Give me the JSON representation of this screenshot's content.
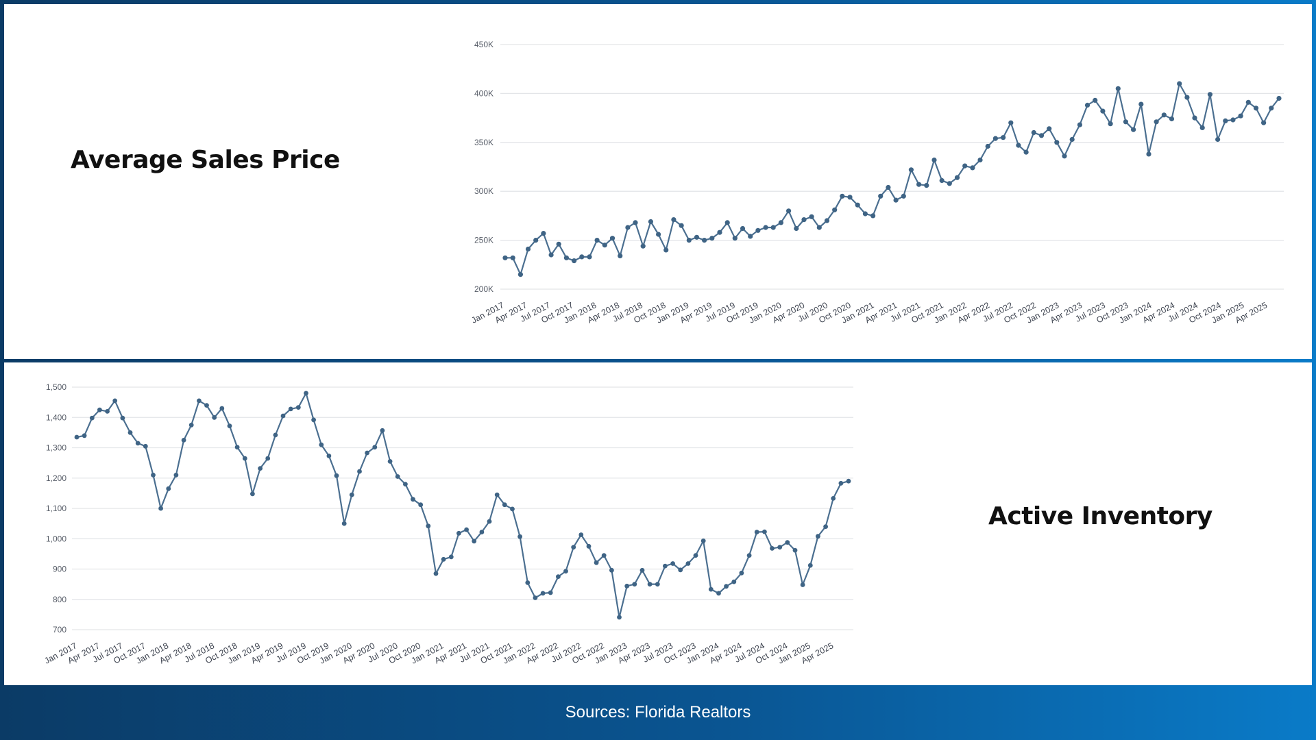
{
  "slide": {
    "source": "Sources: Florida Realtors"
  },
  "chart_data": [
    {
      "type": "line",
      "title": "Average Sales Price",
      "xlabel": "",
      "ylabel": "",
      "ylim": [
        200000,
        450000
      ],
      "yticks": [
        200000,
        250000,
        300000,
        350000,
        400000,
        450000
      ],
      "ytick_labels": [
        "200K",
        "250K",
        "300K",
        "350K",
        "400K",
        "450K"
      ],
      "grid": true,
      "colors": {
        "line": "#4b6f90",
        "marker": "#3f6485"
      },
      "xtick_labels": [
        "Jan 2017",
        "Apr 2017",
        "Jul 2017",
        "Oct 2017",
        "Jan 2018",
        "Apr 2018",
        "Jul 2018",
        "Oct 2018",
        "Jan 2019",
        "Apr 2019",
        "Jul 2019",
        "Oct 2019",
        "Jan 2020",
        "Apr 2020",
        "Jul 2020",
        "Oct 2020",
        "Jan 2021",
        "Apr 2021",
        "Jul 2021",
        "Oct 2021",
        "Jan 2022",
        "Apr 2022",
        "Jul 2022",
        "Oct 2022",
        "Jan 2023",
        "Apr 2023",
        "Jul 2023",
        "Oct 2023",
        "Jan 2024",
        "Apr 2024",
        "Jul 2024",
        "Oct 2024",
        "Jan 2025",
        "Apr 2025"
      ],
      "values": [
        232000,
        232000,
        215000,
        241000,
        250000,
        257000,
        235000,
        246000,
        232000,
        229000,
        233000,
        233000,
        250000,
        245000,
        252000,
        234000,
        263000,
        268000,
        244000,
        269000,
        256000,
        240000,
        271000,
        265000,
        250000,
        253000,
        250000,
        252000,
        258000,
        268000,
        252000,
        262000,
        254000,
        260000,
        263000,
        263000,
        268000,
        280000,
        262000,
        271000,
        274000,
        263000,
        270000,
        281000,
        295000,
        294000,
        286000,
        277000,
        275000,
        295000,
        304000,
        291000,
        295000,
        322000,
        307000,
        306000,
        332000,
        311000,
        308000,
        314000,
        326000,
        324000,
        332000,
        346000,
        354000,
        355000,
        370000,
        347000,
        340000,
        360000,
        357000,
        364000,
        350000,
        336000,
        353000,
        368000,
        388000,
        393000,
        382000,
        369000,
        405000,
        371000,
        363000,
        389000,
        338000,
        371000,
        378000,
        374000,
        410000,
        396000,
        375000,
        365000,
        399000,
        353000,
        372000,
        373000,
        377000,
        391000,
        385000,
        370000,
        385000,
        395000
      ]
    },
    {
      "type": "line",
      "title": "Active Inventory",
      "xlabel": "",
      "ylabel": "",
      "ylim": [
        700,
        1500
      ],
      "yticks": [
        700,
        800,
        900,
        1000,
        1100,
        1200,
        1300,
        1400,
        1500
      ],
      "ytick_labels": [
        "700",
        "800",
        "900",
        "1,000",
        "1,100",
        "1,200",
        "1,300",
        "1,400",
        "1,500"
      ],
      "grid": true,
      "colors": {
        "line": "#4b6f90",
        "marker": "#3f6485"
      },
      "xtick_labels": [
        "Jan 2017",
        "Apr 2017",
        "Jul 2017",
        "Oct 2017",
        "Jan 2018",
        "Apr 2018",
        "Jul 2018",
        "Oct 2018",
        "Jan 2019",
        "Apr 2019",
        "Jul 2019",
        "Oct 2019",
        "Jan 2020",
        "Apr 2020",
        "Jul 2020",
        "Oct 2020",
        "Jan 2021",
        "Apr 2021",
        "Jul 2021",
        "Oct 2021",
        "Jan 2022",
        "Apr 2022",
        "Jul 2022",
        "Oct 2022",
        "Jan 2023",
        "Apr 2023",
        "Jul 2023",
        "Oct 2023",
        "Jan 2024",
        "Apr 2024",
        "Jul 2024",
        "Oct 2024",
        "Jan 2025",
        "Apr 2025"
      ],
      "values": [
        1335,
        1340,
        1398,
        1425,
        1420,
        1455,
        1398,
        1350,
        1315,
        1305,
        1210,
        1100,
        1165,
        1210,
        1325,
        1375,
        1455,
        1440,
        1400,
        1430,
        1372,
        1302,
        1265,
        1148,
        1232,
        1265,
        1342,
        1405,
        1428,
        1433,
        1480,
        1392,
        1310,
        1273,
        1208,
        1050,
        1145,
        1222,
        1283,
        1302,
        1357,
        1255,
        1205,
        1180,
        1130,
        1112,
        1042,
        885,
        932,
        940,
        1018,
        1030,
        992,
        1022,
        1057,
        1145,
        1112,
        1098,
        1007,
        855,
        805,
        820,
        822,
        875,
        893,
        972,
        1013,
        975,
        921,
        945,
        896,
        741,
        844,
        850,
        896,
        850,
        850,
        910,
        918,
        897,
        918,
        945,
        993,
        833,
        820,
        843,
        858,
        887,
        945,
        1022,
        1023,
        968,
        972,
        988,
        962,
        848,
        912,
        1008,
        1040,
        1133,
        1183,
        1190
      ]
    }
  ]
}
